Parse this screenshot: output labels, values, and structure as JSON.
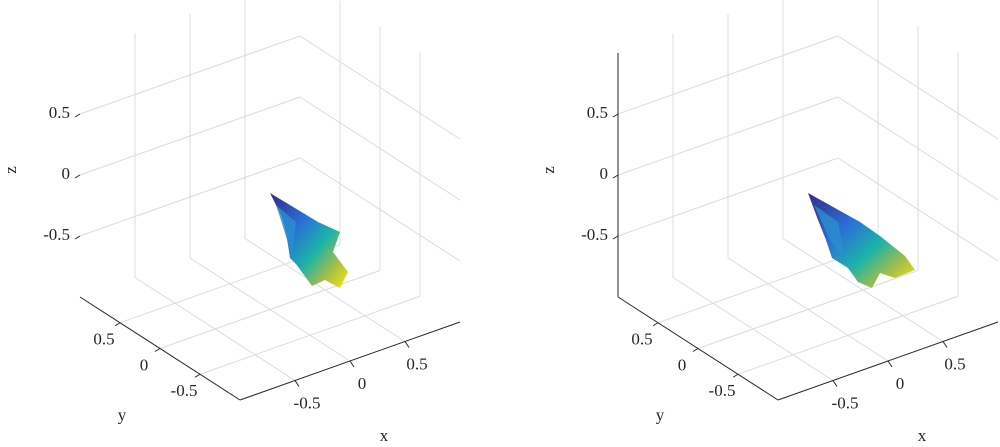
{
  "chart_data": [
    {
      "type": "surface3d",
      "xlabel": "x",
      "ylabel": "y",
      "zlabel": "z",
      "xlim": [
        -1,
        1
      ],
      "ylim": [
        -1,
        1
      ],
      "zlim": [
        -1,
        1
      ],
      "xticks": [
        -0.5,
        0,
        0.5
      ],
      "yticks": [
        -0.5,
        0,
        0.5
      ],
      "zticks": [
        -0.5,
        0,
        0.5
      ],
      "grid": true
    },
    {
      "type": "surface3d",
      "xlabel": "x",
      "ylabel": "y",
      "zlabel": "z",
      "xlim": [
        -1,
        1
      ],
      "ylim": [
        -1,
        1
      ],
      "zlim": [
        -1,
        1
      ],
      "xticks": [
        -0.5,
        0,
        0.5
      ],
      "yticks": [
        -0.5,
        0,
        0.5
      ],
      "zticks": [
        -0.5,
        0,
        0.5
      ],
      "grid": true
    }
  ]
}
